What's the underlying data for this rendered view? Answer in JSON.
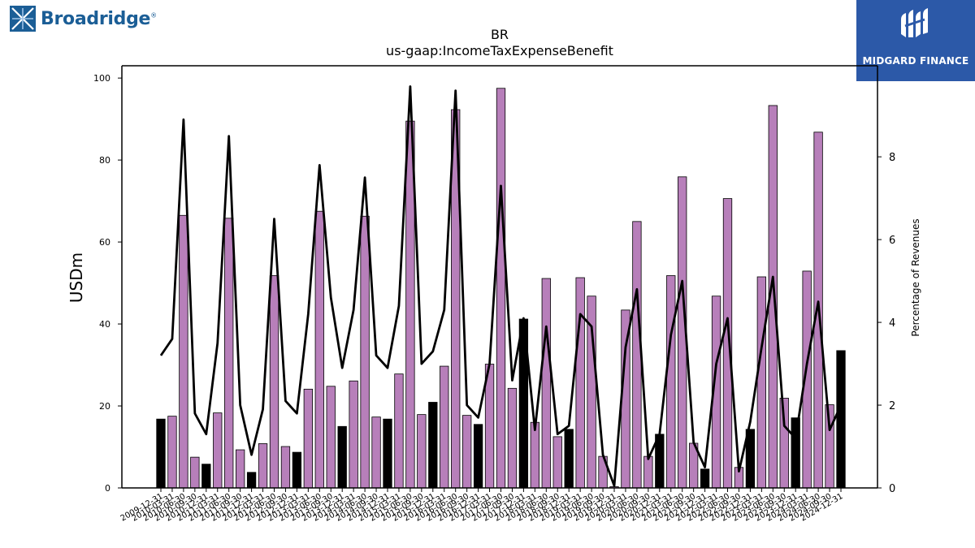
{
  "logos": {
    "left_brand": "Broadridge",
    "right_brand": "MIDGARD FINANCE"
  },
  "colors": {
    "bar_purple": "#b77fba",
    "bar_black": "#000000",
    "line": "#000000",
    "left_logo_blue": "#1b5e96",
    "right_logo_bg": "#2c59a8"
  },
  "chart_data": {
    "type": "bar",
    "title": "BR",
    "subtitle": "us-gaap:IncomeTaxExpenseBenefit",
    "ylabel": "USDm",
    "y2label": "Percentage of Revenues",
    "ylim": [
      0,
      103
    ],
    "y2lim": [
      0,
      10.2
    ],
    "yticks": [
      0,
      20,
      40,
      60,
      80,
      100
    ],
    "y2ticks": [
      0,
      2,
      4,
      6,
      8
    ],
    "grid": false,
    "categories": [
      "2009-12-31",
      "2010-03-31",
      "2010-06-30",
      "2010-09-30",
      "2010-12-31",
      "2011-03-31",
      "2011-06-30",
      "2011-09-30",
      "2011-12-31",
      "2012-03-31",
      "2012-06-30",
      "2012-09-30",
      "2012-12-31",
      "2013-03-31",
      "2013-06-30",
      "2013-09-30",
      "2013-12-31",
      "2014-03-31",
      "2014-06-30",
      "2014-09-30",
      "2014-12-31",
      "2015-03-31",
      "2015-06-30",
      "2015-09-30",
      "2015-12-31",
      "2016-03-31",
      "2016-06-30",
      "2016-09-30",
      "2016-12-31",
      "2017-03-31",
      "2017-06-30",
      "2017-09-30",
      "2017-12-31",
      "2018-03-31",
      "2018-06-30",
      "2018-09-30",
      "2018-12-31",
      "2019-03-31",
      "2019-06-30",
      "2019-09-30",
      "2019-12-31",
      "2020-03-31",
      "2020-06-30",
      "2020-09-30",
      "2020-12-31",
      "2021-03-31",
      "2021-06-30",
      "2021-09-30",
      "2021-12-31",
      "2022-03-31",
      "2022-06-30",
      "2022-09-30",
      "2022-12-31",
      "2023-03-31",
      "2023-06-30",
      "2023-09-30",
      "2023-12-31",
      "2024-03-31",
      "2024-06-30",
      "2024-09-30",
      "2024-12-31"
    ],
    "series": [
      {
        "kind": "bar",
        "values": [
          16.8,
          17.5,
          66.5,
          7.5,
          5.8,
          18.3,
          65.8,
          9.3,
          3.8,
          10.8,
          51.8,
          10.1,
          8.7,
          24.1,
          67.5,
          24.8,
          15.0,
          26.1,
          66.3,
          17.3,
          16.8,
          27.8,
          89.5,
          17.9,
          20.9,
          29.7,
          92.3,
          17.7,
          15.5,
          30.2,
          97.5,
          24.3,
          41.2,
          16.0,
          51.1,
          12.5,
          14.3,
          51.3,
          46.8,
          7.7,
          0.3,
          43.4,
          65.0,
          7.7,
          13.1,
          51.8,
          75.9,
          10.9,
          4.6,
          46.8,
          70.6,
          5.0,
          14.3,
          51.5,
          93.3,
          21.9,
          17.1,
          52.9,
          86.8,
          20.3,
          33.5
        ],
        "colors": [
          "k",
          "p",
          "p",
          "p",
          "k",
          "p",
          "p",
          "p",
          "k",
          "p",
          "p",
          "p",
          "k",
          "p",
          "p",
          "p",
          "k",
          "p",
          "p",
          "p",
          "k",
          "p",
          "p",
          "p",
          "k",
          "p",
          "p",
          "p",
          "k",
          "p",
          "p",
          "p",
          "k",
          "p",
          "p",
          "p",
          "k",
          "p",
          "p",
          "p",
          "p",
          "p",
          "p",
          "p",
          "k",
          "p",
          "p",
          "p",
          "k",
          "p",
          "p",
          "p",
          "k",
          "p",
          "p",
          "p",
          "k",
          "p",
          "p",
          "p",
          "k"
        ]
      },
      {
        "kind": "line",
        "axis": "right",
        "values": [
          3.2,
          3.6,
          8.9,
          1.8,
          1.3,
          3.5,
          8.5,
          2.0,
          0.8,
          1.9,
          6.5,
          2.1,
          1.8,
          4.2,
          7.8,
          4.6,
          2.9,
          4.3,
          7.5,
          3.2,
          2.9,
          4.4,
          9.7,
          3.0,
          3.3,
          4.3,
          9.6,
          2.0,
          1.7,
          3.0,
          7.3,
          2.6,
          4.1,
          1.4,
          3.9,
          1.3,
          1.5,
          4.2,
          3.9,
          0.8,
          0.05,
          3.4,
          4.8,
          0.7,
          1.3,
          3.7,
          5.0,
          1.1,
          0.5,
          3.0,
          4.1,
          0.4,
          1.6,
          3.4,
          5.1,
          1.5,
          1.2,
          3.0,
          4.5,
          1.4,
          2.0
        ]
      }
    ]
  }
}
